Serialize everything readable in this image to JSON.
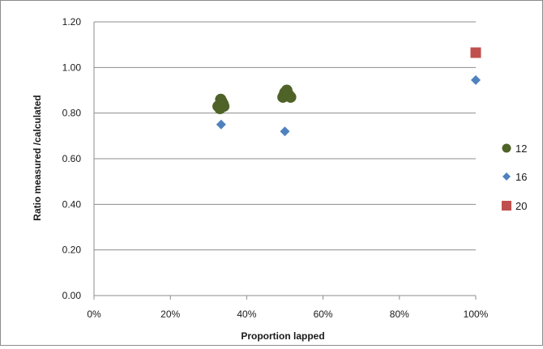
{
  "chart_data": {
    "type": "scatter",
    "xlabel": "Proportion lapped",
    "ylabel": "Ratio measured /calculated",
    "xlim": [
      0,
      1
    ],
    "ylim": [
      0,
      1.2
    ],
    "x_ticks": [
      0,
      0.2,
      0.4,
      0.6,
      0.8,
      1.0
    ],
    "x_tick_labels": [
      "0%",
      "20%",
      "40%",
      "60%",
      "80%",
      "100%"
    ],
    "y_ticks": [
      0,
      0.2,
      0.4,
      0.6,
      0.8,
      1.0,
      1.2
    ],
    "y_tick_labels": [
      "0.00",
      "0.20",
      "0.40",
      "0.60",
      "0.80",
      "1.00",
      "1.20"
    ],
    "grid": "horizontal",
    "legend_position": "right",
    "series": [
      {
        "name": "12",
        "marker": "circle",
        "color": "#4f6228",
        "points": [
          {
            "x": 0.33,
            "y": 0.82
          },
          {
            "x": 0.335,
            "y": 0.85
          },
          {
            "x": 0.338,
            "y": 0.84
          },
          {
            "x": 0.325,
            "y": 0.83
          },
          {
            "x": 0.34,
            "y": 0.83
          },
          {
            "x": 0.332,
            "y": 0.86
          },
          {
            "x": 0.495,
            "y": 0.87
          },
          {
            "x": 0.5,
            "y": 0.89
          },
          {
            "x": 0.505,
            "y": 0.9
          },
          {
            "x": 0.51,
            "y": 0.88
          },
          {
            "x": 0.515,
            "y": 0.87
          },
          {
            "x": 0.498,
            "y": 0.88
          }
        ]
      },
      {
        "name": "16",
        "marker": "diamond",
        "color": "#4f81bd",
        "points": [
          {
            "x": 0.333,
            "y": 0.75
          },
          {
            "x": 0.5,
            "y": 0.72
          },
          {
            "x": 1.0,
            "y": 0.945
          }
        ]
      },
      {
        "name": "20",
        "marker": "square",
        "color": "#c0504d",
        "points": [
          {
            "x": 1.0,
            "y": 1.065
          }
        ]
      }
    ]
  }
}
